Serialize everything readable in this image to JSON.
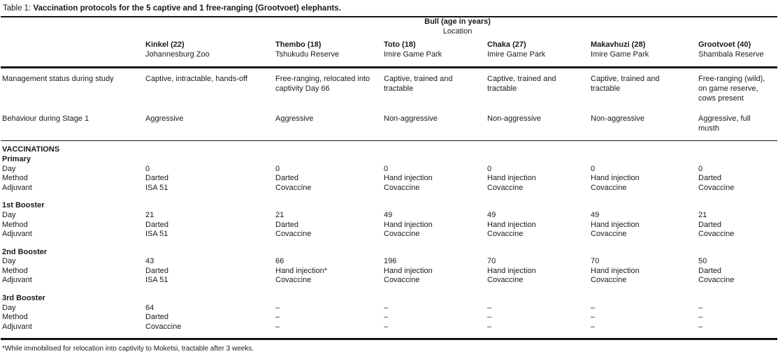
{
  "table": {
    "caption": {
      "prefix": "Table 1: ",
      "text": "Vaccination protocols for the 5 captive and 1 free-ranging (Grootvoet) elephants."
    },
    "header": {
      "group_title": "Bull (age in years)",
      "group_subtitle": "Location"
    },
    "columns": [
      {
        "name": "Kinkel (22)",
        "location": "Johannesburg Zoo"
      },
      {
        "name": "Thembo (18)",
        "location": "Tshukudu Reserve"
      },
      {
        "name": "Toto (18)",
        "location": "Imire Game Park"
      },
      {
        "name": "Chaka (27)",
        "location": "Imire Game Park"
      },
      {
        "name": "Makavhuzi (28)",
        "location": "Imire Game Park"
      },
      {
        "name": "Grootvoet (40)",
        "location": "Shambala Reserve"
      }
    ],
    "general_rows": [
      {
        "label": "Management status during study",
        "values": [
          "Captive, intractable, hands-off",
          "Free-ranging, relocated into captivity Day 66",
          "Captive, trained and tractable",
          "Captive, trained and tractable",
          "Captive, trained and tractable",
          "Free-ranging (wild), on game reserve, cows present"
        ]
      },
      {
        "label": "Behaviour during Stage 1",
        "values": [
          "Aggressive",
          "Aggressive",
          "Non-aggressive",
          "Non-aggressive",
          "Non-aggressive",
          "Aggressive, full musth"
        ]
      }
    ],
    "vaccinations": {
      "section_label": "VACCINATIONS",
      "row_labels": {
        "day": "Day",
        "method": "Method",
        "adjuvant": "Adjuvant"
      },
      "stages": [
        {
          "name": "Primary",
          "day": [
            "0",
            "0",
            "0",
            "0",
            "0",
            "0"
          ],
          "method": [
            "Darted",
            "Darted",
            "Hand injection",
            "Hand injection",
            "Hand injection",
            "Darted"
          ],
          "adjuvant": [
            "ISA 51",
            "Covaccine",
            "Covaccine",
            "Covaccine",
            "Covaccine",
            "Covaccine"
          ]
        },
        {
          "name": "1st Booster",
          "day": [
            "21",
            "21",
            "49",
            "49",
            "49",
            "21"
          ],
          "method": [
            "Darted",
            "Darted",
            "Hand injection",
            "Hand injection",
            "Hand injection",
            "Darted"
          ],
          "adjuvant": [
            "ISA 51",
            "Covaccine",
            "Covaccine",
            "Covaccine",
            "Covaccine",
            "Covaccine"
          ]
        },
        {
          "name": "2nd Booster",
          "day": [
            "43",
            "66",
            "196",
            "70",
            "70",
            "50"
          ],
          "method": [
            "Darted",
            "Hand injection*",
            "Hand injection",
            "Hand injection",
            "Hand injection",
            "Darted"
          ],
          "adjuvant": [
            "ISA 51",
            "Covaccine",
            "Covaccine",
            "Covaccine",
            "Covaccine",
            "Covaccine"
          ]
        },
        {
          "name": "3rd Booster",
          "day": [
            "64",
            "–",
            "–",
            "–",
            "–",
            "–"
          ],
          "method": [
            "Darted",
            "–",
            "–",
            "–",
            "–",
            "–"
          ],
          "adjuvant": [
            "Covaccine",
            "–",
            "–",
            "–",
            "–",
            "–"
          ]
        }
      ]
    },
    "footnote": "*While immobilised for relocation into captivity to Moketsi, tractable after 3 weeks."
  }
}
